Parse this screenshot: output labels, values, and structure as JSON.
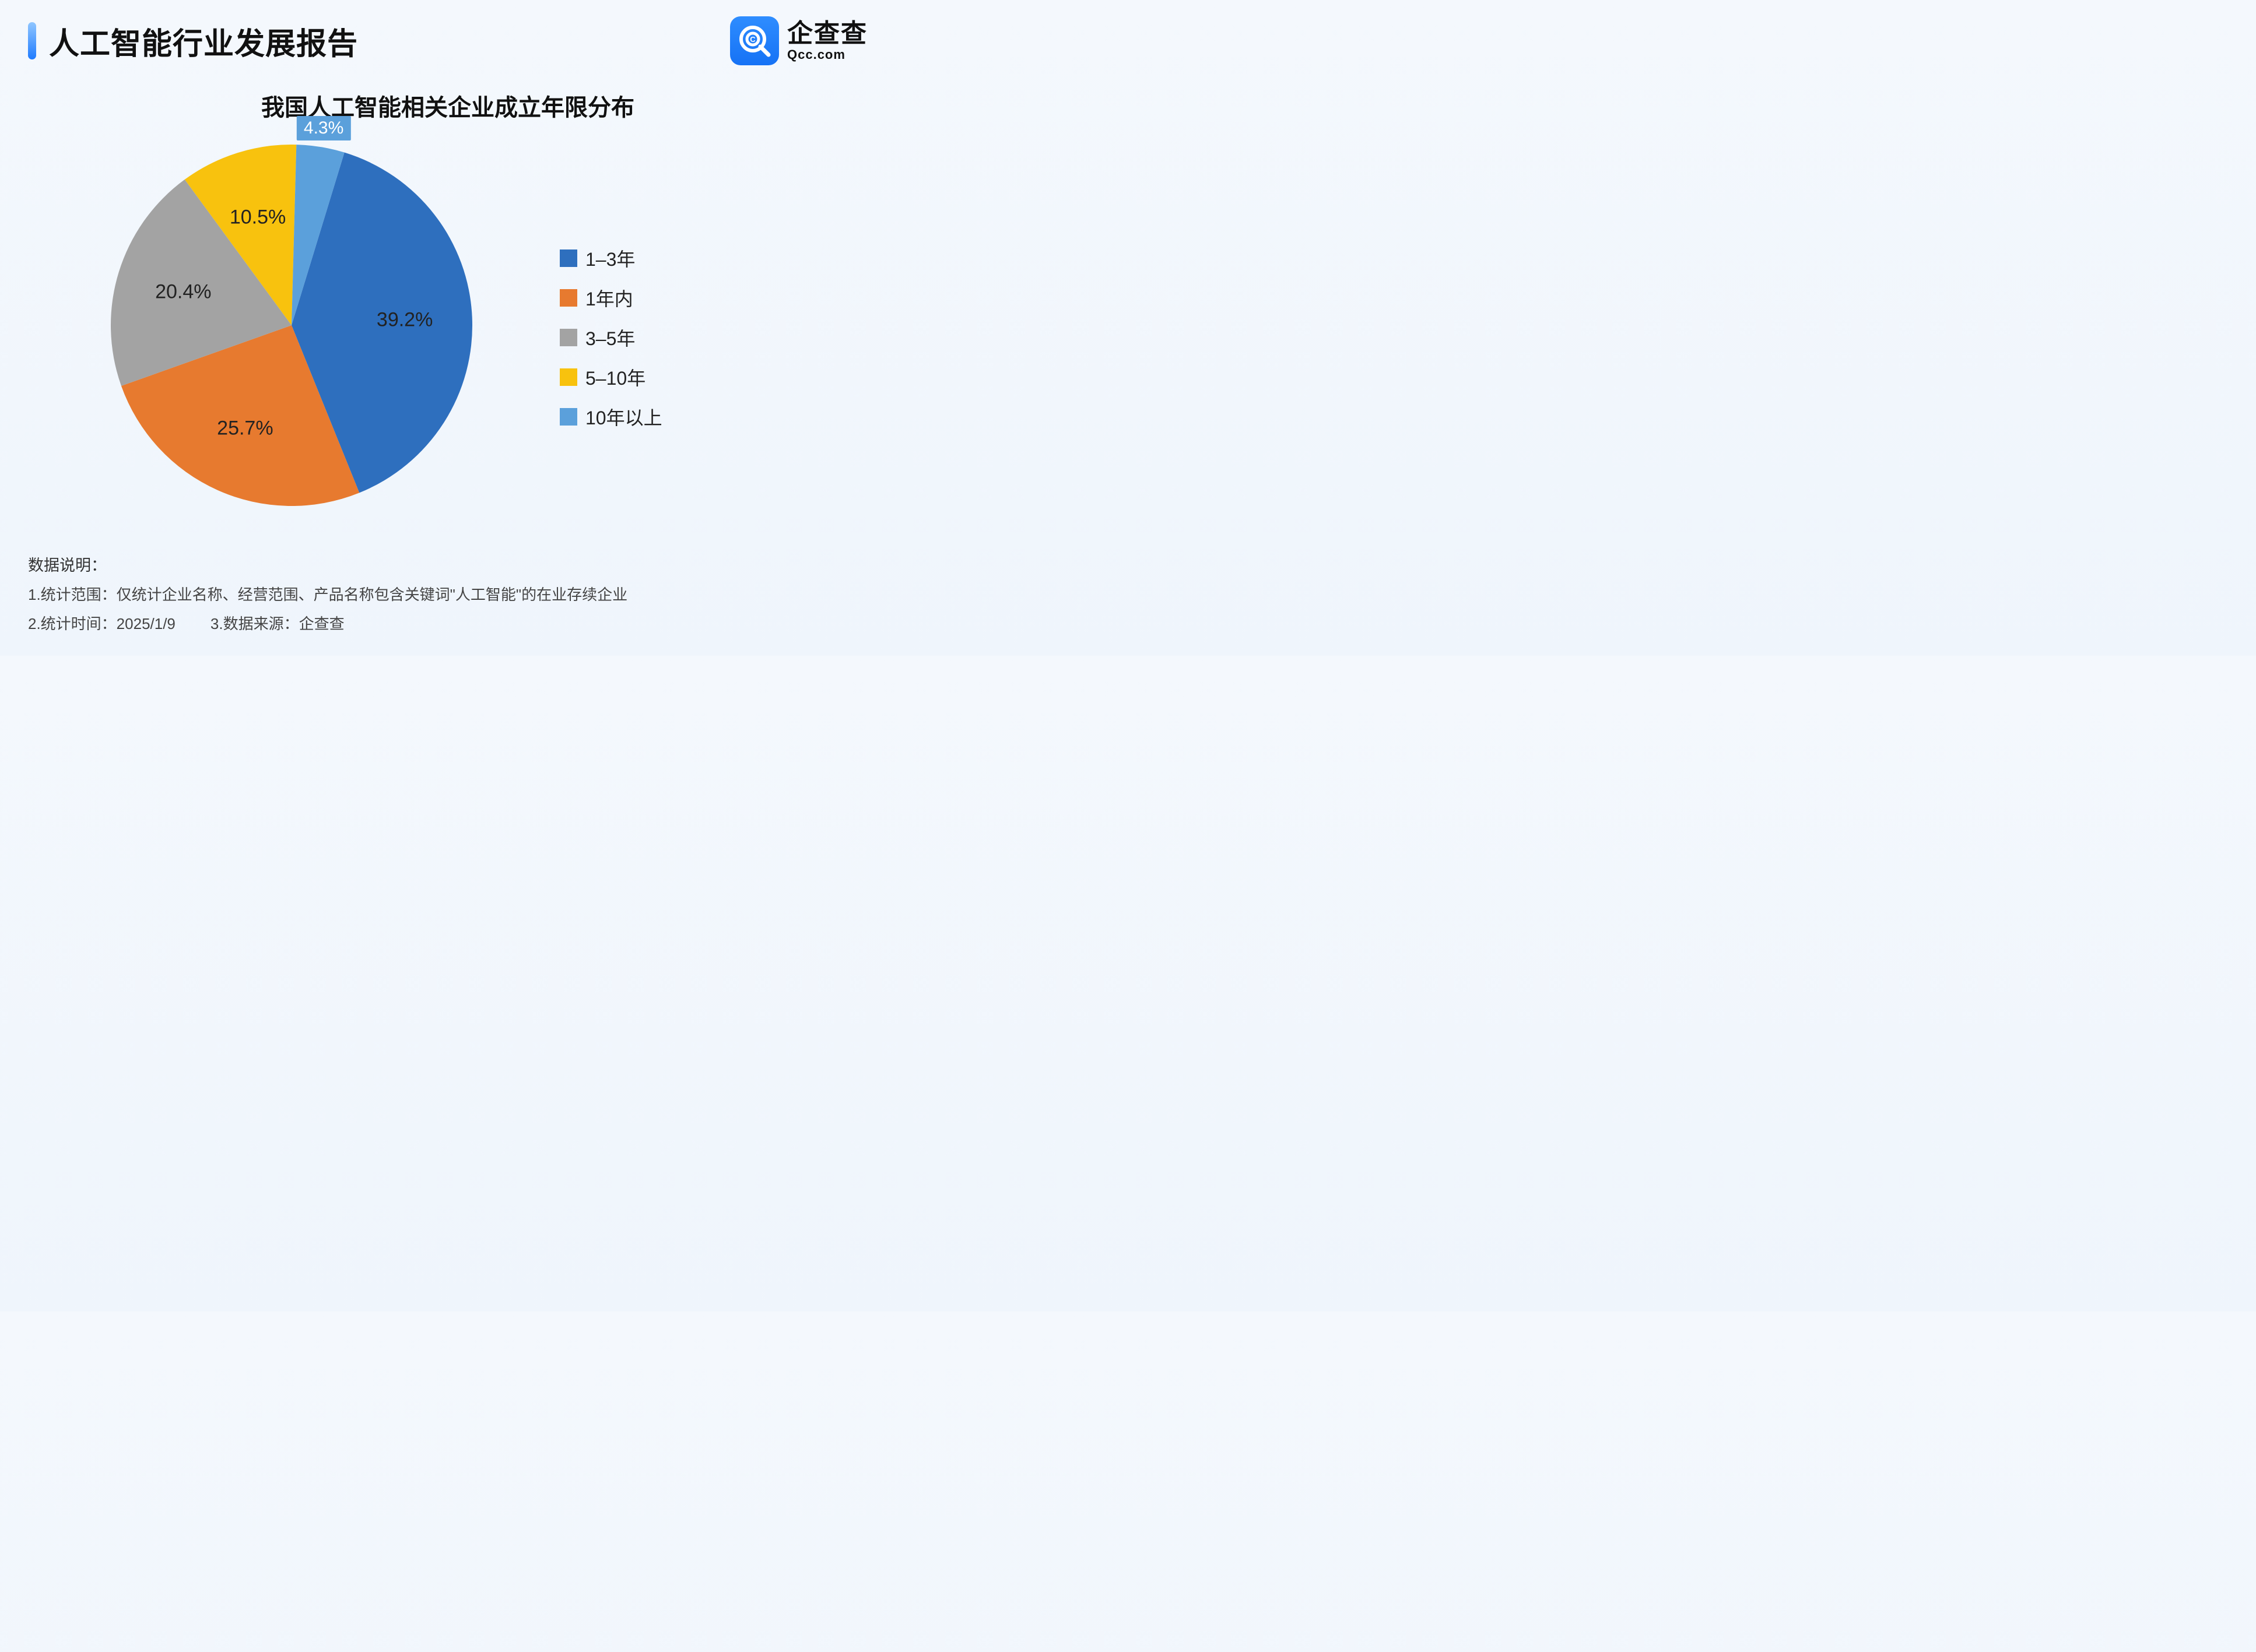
{
  "header": {
    "title": "人工智能行业发展报告",
    "brand_cn": "企查查",
    "brand_en": "Qcc.com"
  },
  "chart": {
    "type": "pie",
    "title": "我国人工智能相关企业成立年限分布",
    "background_color": "#f2f7fc",
    "title_fontsize": 40,
    "label_fontsize": 34,
    "legend_fontsize": 32,
    "slices": [
      {
        "label": "1–3年",
        "value": 39.2,
        "color": "#2e6fbe",
        "pct_text": "39.2%"
      },
      {
        "label": "1年内",
        "value": 25.7,
        "color": "#e77a2f",
        "pct_text": "25.7%"
      },
      {
        "label": "3–5年",
        "value": 20.4,
        "color": "#a3a3a3",
        "pct_text": "20.4%"
      },
      {
        "label": "5–10年",
        "value": 10.5,
        "color": "#f8c20e",
        "pct_text": "10.5%"
      },
      {
        "label": "10年以上",
        "value": 4.3,
        "color": "#5ba0db",
        "pct_text": "4.3%"
      }
    ],
    "start_angle_deg": -73,
    "callout_slice_index": 4,
    "label_radius_inside": 0.67,
    "label_radius_outside": 1.18
  },
  "footer": {
    "heading": "数据说明：",
    "line1": "1.统计范围：仅统计企业名称、经营范围、产品名称包含关键词\"人工智能\"的在业存续企业",
    "line2a": "2.统计时间：2025/1/9",
    "line2b": "3.数据来源：企查查"
  }
}
